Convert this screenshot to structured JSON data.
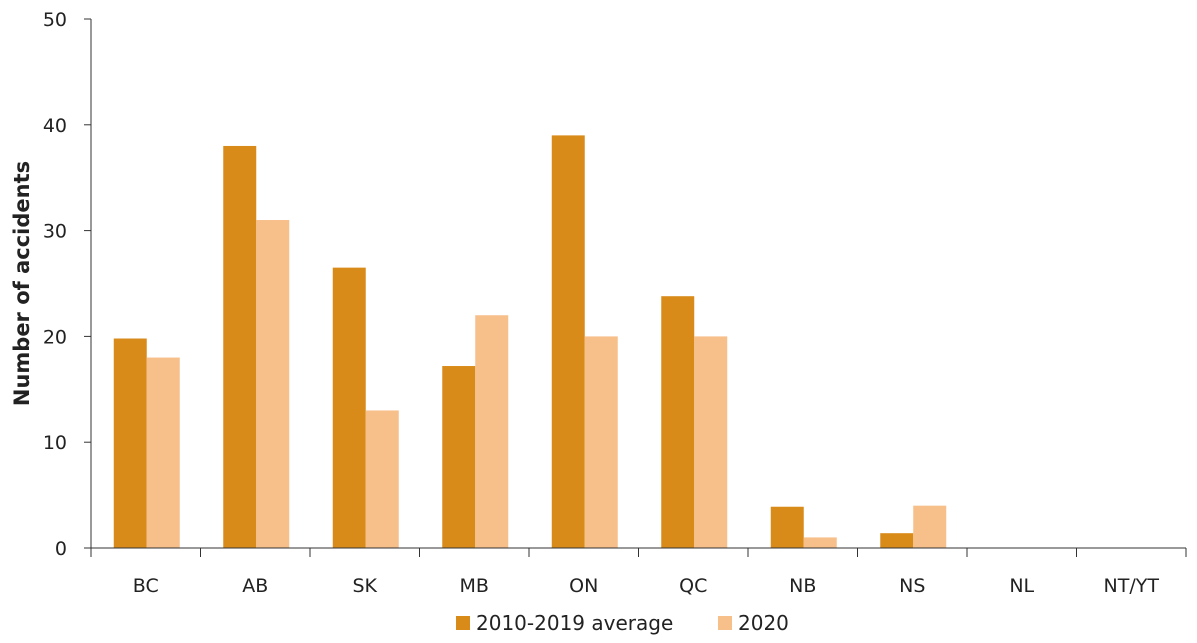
{
  "chart_data": {
    "type": "bar",
    "title": "",
    "xlabel": "",
    "ylabel": "Number of accidents",
    "ylim": [
      0,
      50
    ],
    "yticks": [
      0,
      10,
      20,
      30,
      40,
      50
    ],
    "categories": [
      "BC",
      "AB",
      "SK",
      "MB",
      "ON",
      "QC",
      "NB",
      "NS",
      "NL",
      "NT/YT"
    ],
    "series": [
      {
        "name": "2010-2019 average",
        "color": "#D98B1A",
        "values": [
          19.8,
          38,
          26.5,
          17.2,
          39,
          23.8,
          3.9,
          1.4,
          0,
          0
        ]
      },
      {
        "name": "2020",
        "color": "#F7BF8A",
        "values": [
          18,
          31,
          13,
          22,
          20,
          20,
          1,
          4,
          0,
          0
        ]
      }
    ],
    "grid": false,
    "legend_position": "bottom-center"
  }
}
